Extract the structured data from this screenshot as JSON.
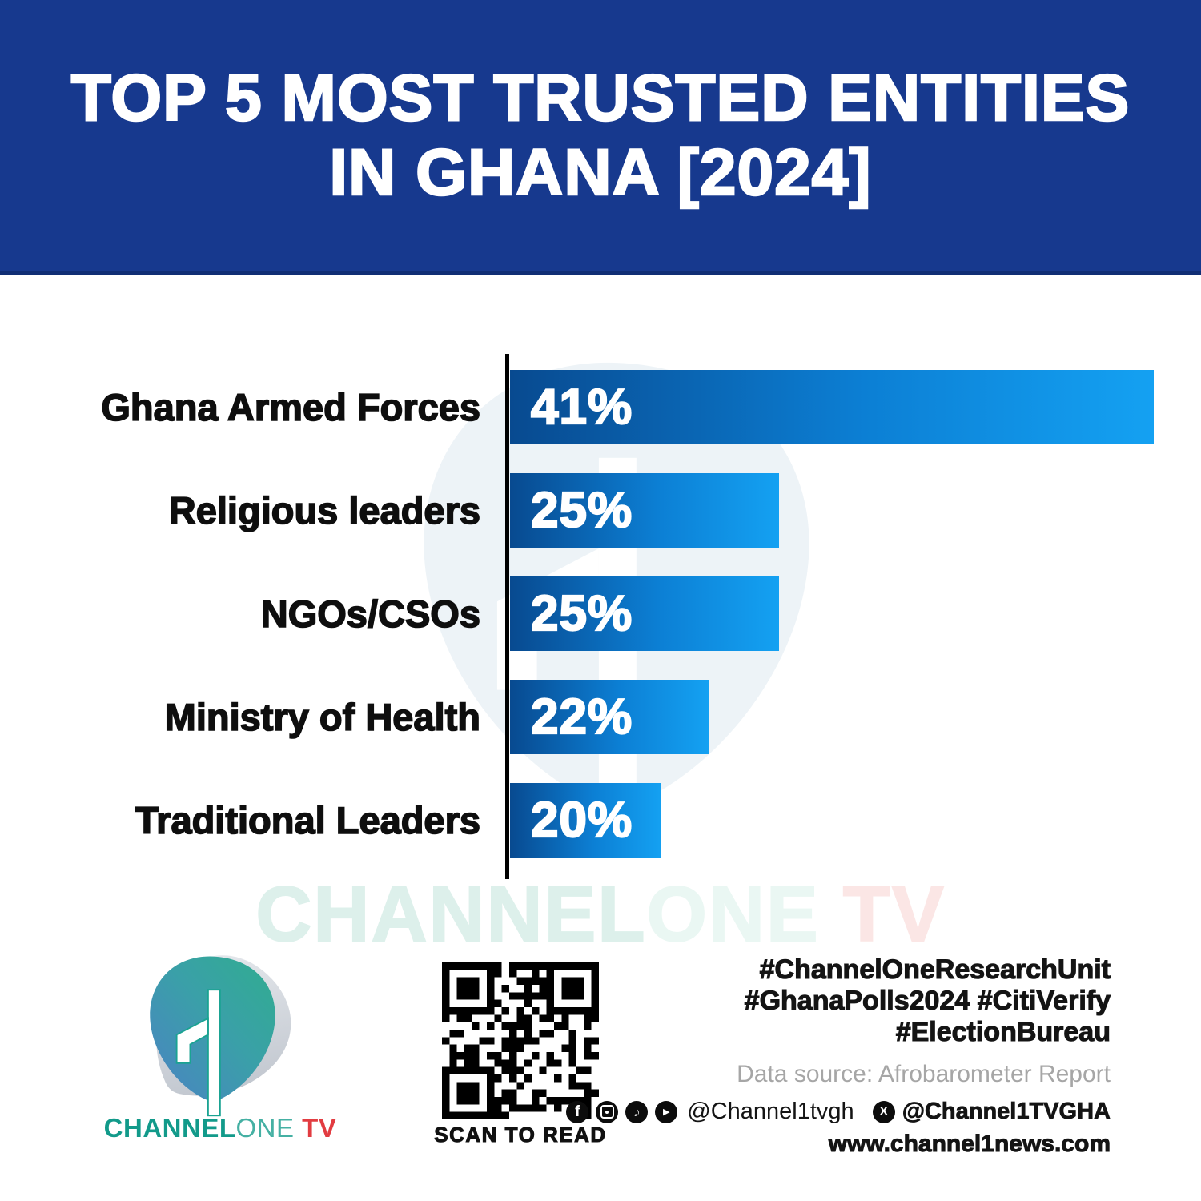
{
  "header": {
    "title_line1": "TOP 5 MOST TRUSTED ENTITIES",
    "title_line2": "IN GHANA [2024]"
  },
  "chart_data": {
    "type": "bar",
    "orientation": "horizontal",
    "title": "TOP 5 MOST TRUSTED ENTITIES IN GHANA [2024]",
    "categories": [
      "Ghana Armed Forces",
      "Religious leaders",
      "NGOs/CSOs",
      "Ministry of Health",
      "Traditional Leaders"
    ],
    "values": [
      41,
      25,
      25,
      22,
      20
    ],
    "value_labels": [
      "41%",
      "25%",
      "25%",
      "22%",
      "20%"
    ],
    "unit": "%",
    "xlim": [
      0,
      45
    ],
    "grid": false,
    "legend": "none"
  },
  "watermark": {
    "part1": "CHANNEL",
    "part2": "ONE",
    "part3": " TV"
  },
  "footer": {
    "wordmark": {
      "part1": "CHANNEL",
      "part2": "ONE",
      "part3": " TV"
    },
    "qr_label": "SCAN TO READ",
    "hashtags": [
      "#ChannelOneResearchUnit",
      "#GhanaPolls2024 #CitiVerify",
      "#ElectionBureau"
    ],
    "data_source": "Data source: Afrobarometer Report",
    "social": {
      "icons": [
        "facebook-icon",
        "instagram-icon",
        "tiktok-icon",
        "youtube-icon"
      ],
      "handle_primary": "@Channel1tvgh",
      "x_icon": "x-icon",
      "handle_x": "@Channel1TVGHA"
    },
    "website": "www.channel1news.com"
  },
  "colors": {
    "header_bg": "#17398e",
    "header_border": "#102e74",
    "bar_start": "#084a90",
    "bar_mid": "#0c7fd4",
    "bar_end": "#14a1f2",
    "axis": "#000000",
    "label": "#0e0e0e",
    "value": "#ffffff",
    "wm_teal": "#ddf0eb",
    "wm_teal2": "#eaf7f3",
    "wm_pink": "#fbe6e5",
    "logo_teal": "#129a8a",
    "logo_teal_light": "#45b0a3",
    "logo_red": "#e23c41",
    "grey_text": "#a6a6a6",
    "dark_text": "#141414",
    "blob": "#edf3f7"
  }
}
